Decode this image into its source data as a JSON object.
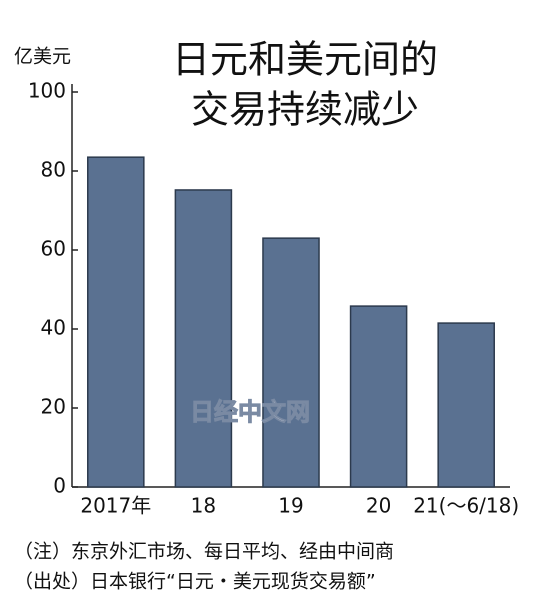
{
  "chart_data": {
    "type": "bar",
    "title": [
      "日元和美元间的",
      "交易持续减少"
    ],
    "y_label": "亿美元",
    "categories": [
      "2017年",
      "18",
      "19",
      "20",
      "21(～6/18)"
    ],
    "values": [
      83.5,
      75.2,
      63,
      45.8,
      41.5
    ],
    "color": "#5a7191",
    "ylim": [
      0,
      100
    ],
    "yticks": [
      0,
      20,
      40,
      60,
      80,
      100
    ],
    "grid": false,
    "watermark": "日经中文网",
    "notes": [
      "（注）东京外汇市场、每日平均、经由中间商",
      "（出处）日本银行“日元・美元现货交易额”"
    ]
  }
}
